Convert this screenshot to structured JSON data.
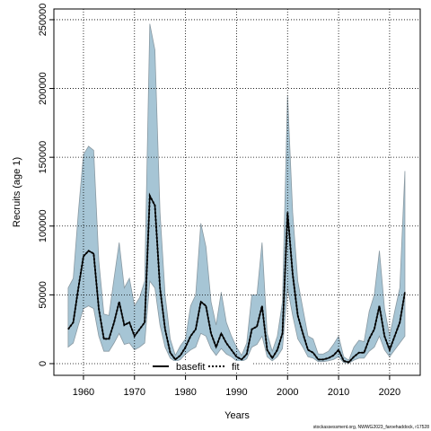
{
  "chart_data": {
    "type": "line",
    "xlabel": "Years",
    "ylabel": "Recruits (age 1)",
    "footer": "stockassessment.org, NWWG2023_faroehaddock, r17528",
    "x": [
      1957,
      1958,
      1959,
      1960,
      1961,
      1962,
      1963,
      1964,
      1965,
      1966,
      1967,
      1968,
      1969,
      1970,
      1971,
      1972,
      1973,
      1974,
      1975,
      1976,
      1977,
      1978,
      1979,
      1980,
      1981,
      1982,
      1983,
      1984,
      1985,
      1986,
      1987,
      1988,
      1989,
      1990,
      1991,
      1992,
      1993,
      1994,
      1995,
      1996,
      1997,
      1998,
      1999,
      2000,
      2001,
      2002,
      2003,
      2004,
      2005,
      2006,
      2007,
      2008,
      2009,
      2010,
      2011,
      2012,
      2013,
      2014,
      2015,
      2016,
      2017,
      2018,
      2019,
      2020,
      2021,
      2022,
      2023
    ],
    "series": [
      {
        "name": "basefit",
        "color": "#000000",
        "dash": false,
        "values": [
          25000,
          30000,
          55000,
          78000,
          82000,
          80000,
          40000,
          18000,
          18000,
          30000,
          45000,
          28000,
          30000,
          20000,
          25000,
          30000,
          122000,
          115000,
          55000,
          25000,
          8000,
          3000,
          6000,
          12000,
          20000,
          25000,
          45000,
          42000,
          22000,
          12000,
          22000,
          15000,
          10000,
          5000,
          3000,
          7000,
          25000,
          27000,
          42000,
          10000,
          4000,
          10000,
          22000,
          110000,
          65000,
          35000,
          22000,
          10000,
          8000,
          3000,
          3000,
          4000,
          6000,
          10000,
          2000,
          1000,
          5000,
          8000,
          8000,
          18000,
          25000,
          42000,
          20000,
          10000,
          20000,
          30000,
          52000
        ]
      },
      {
        "name": "fit",
        "color": "#000000",
        "dash": true,
        "values": [
          25000,
          30000,
          55000,
          78000,
          82000,
          80000,
          40000,
          18000,
          18000,
          30000,
          45000,
          28000,
          30000,
          20000,
          25000,
          30000,
          122000,
          115000,
          55000,
          25000,
          8000,
          3000,
          6000,
          12000,
          20000,
          25000,
          45000,
          42000,
          22000,
          12000,
          22000,
          15000,
          10000,
          5000,
          3000,
          7000,
          25000,
          27000,
          42000,
          10000,
          4000,
          10000,
          22000,
          110000,
          65000,
          35000,
          22000,
          10000,
          8000,
          3000,
          3000,
          4000,
          6000,
          10000,
          2000,
          1000,
          5000,
          8000,
          8000,
          18000,
          25000,
          42000,
          20000,
          10000,
          20000,
          30000,
          52000
        ]
      }
    ],
    "band": {
      "color": "#a6c5d5",
      "upper": [
        55000,
        62000,
        110000,
        152000,
        158000,
        155000,
        75000,
        36000,
        35000,
        62000,
        88000,
        55000,
        62000,
        42000,
        48000,
        60000,
        247000,
        228000,
        110000,
        50000,
        18000,
        6000,
        13000,
        18000,
        42000,
        50000,
        102000,
        85000,
        45000,
        28000,
        52000,
        30000,
        20000,
        12000,
        6000,
        15000,
        50000,
        50000,
        88000,
        22000,
        9000,
        20000,
        45000,
        195000,
        110000,
        60000,
        40000,
        20000,
        18000,
        7000,
        7000,
        9000,
        14000,
        20000,
        5000,
        2500,
        12000,
        17000,
        16000,
        38000,
        50000,
        82000,
        40000,
        20000,
        38000,
        55000,
        140000
      ],
      "lower": [
        12000,
        15000,
        28000,
        40000,
        42000,
        40000,
        20000,
        9000,
        9000,
        15000,
        22000,
        14000,
        15000,
        10000,
        12000,
        15000,
        60000,
        55000,
        28000,
        12000,
        4000,
        1500,
        3000,
        7000,
        10000,
        12000,
        22000,
        20000,
        11000,
        6000,
        11000,
        7000,
        5000,
        2000,
        1500,
        3500,
        12000,
        14000,
        20000,
        5000,
        2000,
        5000,
        11000,
        55000,
        35000,
        18000,
        12000,
        5000,
        4000,
        1500,
        1500,
        2000,
        3000,
        5000,
        800,
        400,
        2500,
        4000,
        4000,
        9000,
        12000,
        20000,
        10000,
        5000,
        10000,
        15000,
        20000
      ]
    },
    "xlim": [
      1954.2,
      2026
    ],
    "ylim": [
      -8500,
      257800
    ],
    "xticks": [
      1960,
      1970,
      1980,
      1990,
      2000,
      2010,
      2020
    ],
    "yticks": [
      0,
      50000,
      100000,
      150000,
      200000,
      250000
    ],
    "grid": true
  }
}
